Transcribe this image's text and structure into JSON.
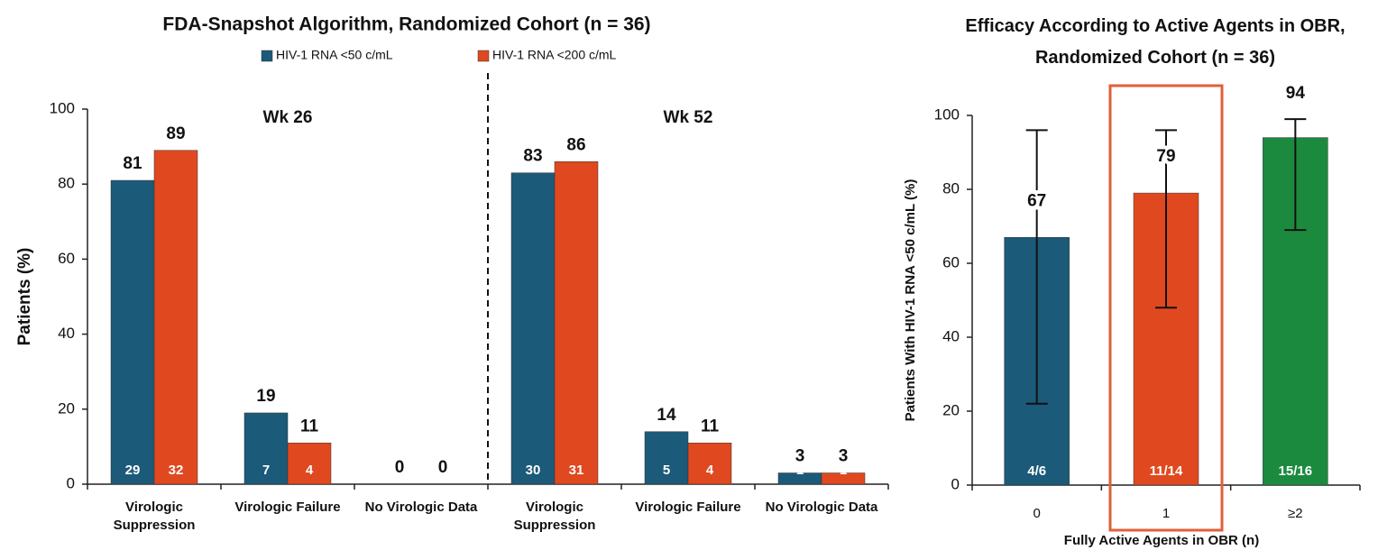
{
  "chart_data": [
    {
      "type": "bar",
      "title": "FDA-Snapshot Algorithm, Randomized Cohort (n = 36)",
      "y_label": "Patients (%)",
      "groups": [
        "Wk 26",
        "Wk 52"
      ],
      "categories": [
        "Virologic Suppression",
        "Virologic Failure",
        "No Virologic Data",
        "Virologic Suppression",
        "Virologic Failure",
        "No Virologic Data"
      ],
      "series": [
        {
          "name": "HIV-1 RNA <50 c/mL",
          "color": "#1b5a78",
          "values": [
            81,
            19,
            0,
            83,
            14,
            3
          ],
          "counts": [
            29,
            7,
            null,
            30,
            5,
            1
          ]
        },
        {
          "name": "HIV-1 RNA <200 c/mL",
          "color": "#e0491f",
          "values": [
            89,
            11,
            0,
            86,
            11,
            3
          ],
          "counts": [
            32,
            4,
            null,
            31,
            4,
            1
          ]
        }
      ],
      "ylim": [
        0,
        100
      ],
      "yticks": [
        0,
        20,
        40,
        60,
        80,
        100
      ],
      "legend": "top"
    },
    {
      "type": "bar",
      "title": "Efficacy According to Active Agents in OBR, Randomized Cohort (n = 36)",
      "y_label": "Patients With HIV-1 RNA <50 c/mL (%)",
      "x_label": "Fully Active Agents in OBR (n)",
      "categories": [
        "0",
        "1",
        "≥2"
      ],
      "values": [
        67,
        79,
        94
      ],
      "ci": [
        [
          22,
          96
        ],
        [
          48,
          96
        ],
        [
          69,
          99
        ]
      ],
      "counts": [
        "4/6",
        "11/14",
        "15/16"
      ],
      "colors": [
        "#1b5a78",
        "#e0491f",
        "#1b8a3f"
      ],
      "highlight": "1",
      "ylim": [
        0,
        100
      ],
      "yticks": [
        0,
        20,
        40,
        60,
        80,
        100
      ]
    }
  ]
}
